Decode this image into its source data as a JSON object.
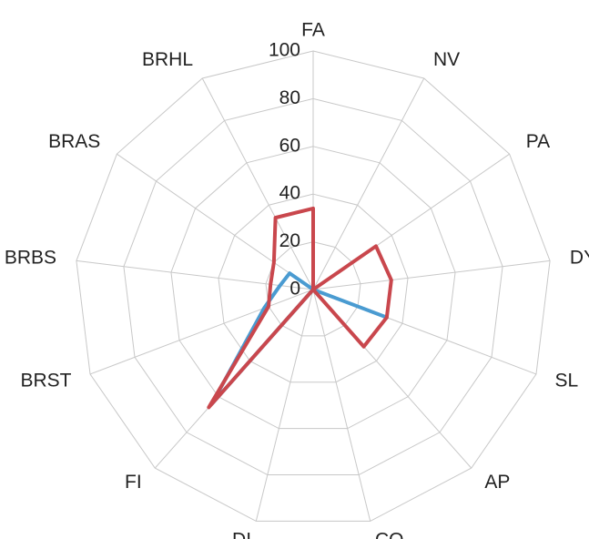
{
  "chart_data": {
    "type": "radar",
    "categories": [
      "FA",
      "NV",
      "PA",
      "DY",
      "SL",
      "AP",
      "CO",
      "DI",
      "FI",
      "BRST",
      "BRBS",
      "BRAS",
      "BRHL"
    ],
    "series": [
      {
        "color": "#4a9bd1",
        "values": [
          0,
          0,
          0,
          0,
          33,
          0,
          0,
          0,
          64,
          22,
          14,
          12,
          0
        ]
      },
      {
        "color": "#c9474d",
        "values": [
          34,
          0,
          32,
          33,
          33,
          32,
          0,
          0,
          66,
          20,
          18,
          20,
          34
        ]
      }
    ],
    "ylim": [
      0,
      100
    ],
    "yticks": [
      0,
      20,
      40,
      60,
      80,
      100
    ],
    "grid": true
  }
}
